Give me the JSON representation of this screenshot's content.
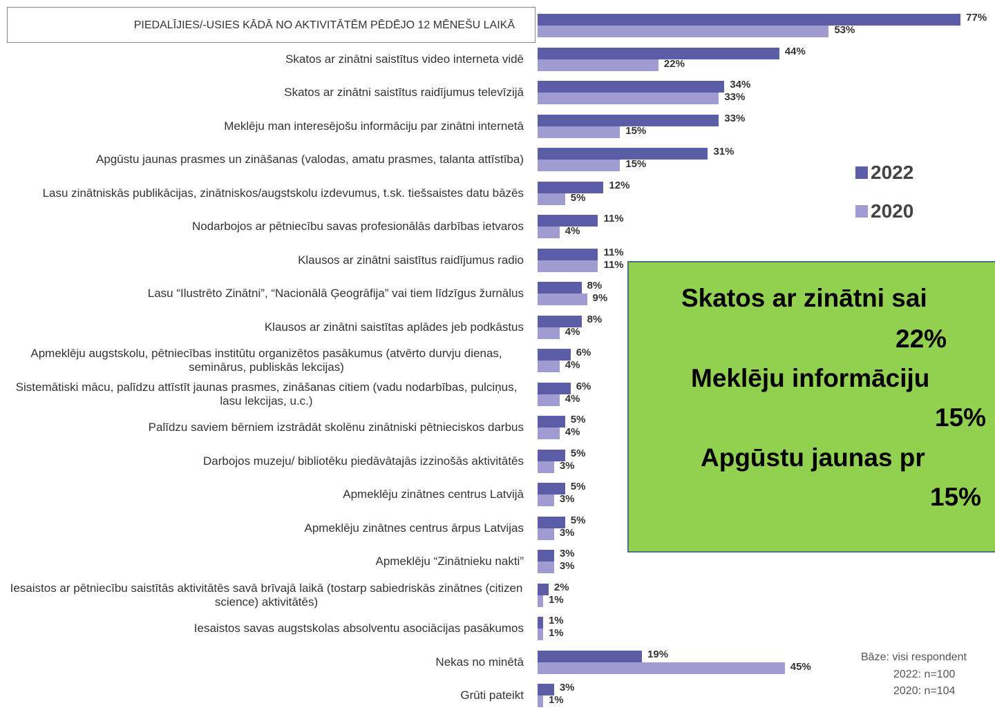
{
  "chart_data": {
    "type": "hbar",
    "categories": [
      "PIEDALĪJIES/-USIES KĀDĀ NO AKTIVITĀTĒM PĒDĒJO 12 MĒNEŠU LAIKĀ",
      "Skatos ar zinātni saistītus video interneta vidē",
      "Skatos ar zinātni saistītus raidījumus televīzijā",
      "Meklēju man interesējošu informāciju par zinātni internetā",
      "Apgūstu jaunas prasmes un zināšanas (valodas, amatu prasmes, talanta attīstība)",
      "Lasu zinātniskās publikācijas, zinātniskos/augstskolu izdevumus, t.sk. tiešsaistes datu bāzēs",
      "Nodarbojos ar pētniecību savas profesionālās darbības ietvaros",
      "Klausos ar zinātni saistītus raidījumus radio",
      "Lasu “Ilustrēto Zinātni”, “Nacionālā Ģeogrāfija” vai tiem līdzīgus žurnālus",
      "Klausos ar zinātni saistītas aplādes jeb podkāstus",
      "Apmeklēju augstskolu, pētniecības institūtu organizētos pasākumus (atvērto durvju dienas, seminārus, publiskās lekcijas)",
      "Sistemātiski mācu, palīdzu attīstīt jaunas prasmes, zināšanas citiem (vadu nodarbības, pulciņus, lasu lekcijas, u.c.)",
      "Palīdzu saviem bērniem izstrādāt skolēnu zinātniski pētnieciskos darbus",
      "Darbojos muzeju/ bibliotēku piedāvātajās izzinošās aktivitātēs",
      "Apmeklēju zinātnes centrus Latvijā",
      "Apmeklēju zinātnes centrus ārpus Latvijas",
      "Apmeklēju “Zinātnieku nakti”",
      "Iesaistos ar pētniecību saistītās aktivitātēs savā brīvajā laikā (tostarp sabiedriskās zinātnes (citizen science) aktivitātēs)",
      "Iesaistos savas augstskolas absolventu asociācijas pasākumos",
      "Nekas no minētā",
      "Grūti pateikt"
    ],
    "series": [
      {
        "name": "2022",
        "color": "#5b5ea6",
        "values": [
          77,
          44,
          34,
          33,
          31,
          12,
          11,
          11,
          8,
          8,
          6,
          6,
          5,
          5,
          5,
          5,
          3,
          2,
          1,
          19,
          3
        ],
        "value_labels": [
          "77%",
          "44%",
          "34%",
          "33%",
          "31%",
          "12%",
          "11%",
          "11%",
          "8%",
          "8%",
          "6%",
          "6%",
          "5%",
          "5%",
          "5%",
          "5%",
          "3%",
          "2%",
          "1%",
          "19%",
          "3%"
        ]
      },
      {
        "name": "2020",
        "color": "#a09bd0",
        "values": [
          53,
          22,
          33,
          15,
          15,
          5,
          4,
          11,
          9,
          4,
          4,
          4,
          4,
          3,
          3,
          3,
          3,
          1,
          1,
          45,
          1
        ],
        "value_labels": [
          "53%",
          "22%",
          "33%",
          "15%",
          "15%",
          "5%",
          "4%",
          "11%",
          "9%",
          "4%",
          "4%",
          "4%",
          "4%",
          "3%",
          "3%",
          "3%",
          "3%",
          "1%",
          "1%",
          "45%",
          "1%"
        ]
      }
    ],
    "xlim": [
      0,
      100
    ],
    "annotation": [
      "Skatos ar zinātni sai",
      "22%",
      "Meklēju informāciju",
      "15%",
      "Apgūstu jaunas pr",
      "15%"
    ],
    "notes": [
      "Bāze: visi respondent",
      "2022: n=100",
      "2020: n=104"
    ]
  }
}
